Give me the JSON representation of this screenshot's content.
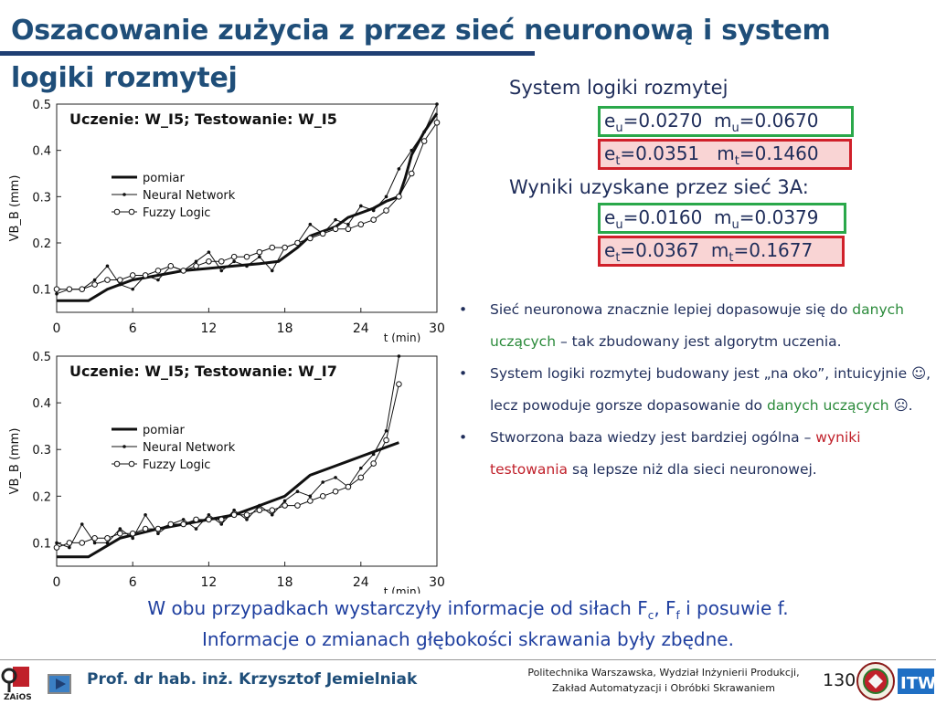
{
  "slide": {
    "title": "Oszacowanie zużycia z przez sieć neuronową i system logiki rozmytej"
  },
  "fuzzy_system": {
    "heading": "System logiki rozmytej",
    "train": {
      "e_label": "e",
      "e_sub": "u",
      "e_val": "=0.0270",
      "m_label": "m",
      "m_sub": "u",
      "m_val": "=0.0670"
    },
    "test": {
      "e_label": "e",
      "e_sub": "t",
      "e_val": "=0.0351",
      "m_label": "m",
      "m_sub": "t",
      "m_val": "=0.1460"
    }
  },
  "nn_results": {
    "heading": "Wyniki uzyskane przez sieć 3A:",
    "train": {
      "e_label": "e",
      "e_sub": "u",
      "e_val": "=0.0160",
      "m_label": "m",
      "m_sub": "u",
      "m_val": "=0.0379"
    },
    "test": {
      "e_label": "e",
      "e_sub": "t",
      "e_val": "=0.0367",
      "m_label": "m",
      "m_sub": "t",
      "m_val": "=0.1677"
    }
  },
  "bullets": [
    {
      "parts": [
        {
          "t": "Sieć neuronowa znacznie lepiej dopasowuje się do ",
          "c": ""
        },
        {
          "t": "danych uczących",
          "c": "green"
        },
        {
          "t": " – tak zbudowany jest algorytm uczenia.",
          "c": ""
        }
      ]
    },
    {
      "parts": [
        {
          "t": "System logiki rozmytej budowany jest „na oko”, intuicyjnie ☺, lecz powoduje gorsze dopasowanie do ",
          "c": ""
        },
        {
          "t": "danych uczących",
          "c": "green"
        },
        {
          "t": " ☹.",
          "c": ""
        }
      ]
    },
    {
      "parts": [
        {
          "t": "Stworzona baza wiedzy jest bardziej ogólna – ",
          "c": ""
        },
        {
          "t": "wyniki testowania",
          "c": "red"
        },
        {
          "t": " są lepsze niż dla sieci neuronowej.",
          "c": ""
        }
      ]
    }
  ],
  "summary": {
    "line1_a": "W obu przypadkach wystarczyły informacje od siłach F",
    "line1_sub1": "c",
    "line1_b": ", F",
    "line1_sub2": "f",
    "line1_c": "  i posuwie f.",
    "line2": "Informacje o zmianach głębokości skrawania były zbędne."
  },
  "footer": {
    "author": "Prof. dr hab. inż. Krzysztof Jemielniak",
    "institution_line1": "Politechnika Warszawska, Wydział Inżynierii Produkcji,",
    "institution_line2": "Zakład Automatyzacji i Obróbki Skrawaniem",
    "page_number": "130",
    "logo_left_text": "ZAiOS",
    "logo_right_text": "ITW"
  },
  "colors": {
    "title": "#1f4e79",
    "green_box": "#2aa84a",
    "red_box": "#d0202a",
    "red_fill": "#f9d4d4"
  },
  "chart_data": [
    {
      "type": "line",
      "title": "Uczenie: W_I5; Testowanie: W_I5",
      "xlabel": "t (min)",
      "ylabel": "VB_B (mm)",
      "xlim": [
        0,
        30
      ],
      "ylim": [
        0.05,
        0.5
      ],
      "xticks": [
        "0",
        "6",
        "12",
        "18",
        "24",
        "30"
      ],
      "yticks": [
        "0.1",
        "0.2",
        "0.3",
        "0.4",
        "0.5"
      ],
      "legend": [
        "pomiar",
        "Neural Network",
        "Fuzzy Logic"
      ],
      "series": [
        {
          "name": "pomiar",
          "x": [
            0,
            2.5,
            4,
            6,
            8,
            10,
            12,
            14,
            16,
            17.5,
            19,
            20,
            22,
            23,
            24,
            25,
            26,
            27,
            27.5,
            28,
            29,
            30
          ],
          "y": [
            0.075,
            0.075,
            0.1,
            0.12,
            0.13,
            0.14,
            0.145,
            0.15,
            0.155,
            0.16,
            0.19,
            0.215,
            0.235,
            0.255,
            0.265,
            0.275,
            0.29,
            0.3,
            0.34,
            0.39,
            0.44,
            0.48
          ]
        },
        {
          "name": "Neural Network",
          "x": [
            0,
            1,
            2,
            3,
            4,
            5,
            6,
            7,
            8,
            9,
            10,
            11,
            12,
            13,
            14,
            15,
            16,
            17,
            18,
            19,
            20,
            21,
            22,
            23,
            24,
            25,
            26,
            27,
            28,
            29,
            30
          ],
          "y": [
            0.09,
            0.1,
            0.1,
            0.12,
            0.15,
            0.11,
            0.1,
            0.13,
            0.12,
            0.15,
            0.14,
            0.16,
            0.18,
            0.14,
            0.16,
            0.15,
            0.17,
            0.14,
            0.19,
            0.2,
            0.24,
            0.22,
            0.25,
            0.24,
            0.28,
            0.27,
            0.3,
            0.36,
            0.4,
            0.44,
            0.5
          ]
        },
        {
          "name": "Fuzzy Logic",
          "x": [
            0,
            1,
            2,
            3,
            4,
            5,
            6,
            7,
            8,
            9,
            10,
            11,
            12,
            13,
            14,
            15,
            16,
            17,
            18,
            19,
            20,
            21,
            22,
            23,
            24,
            25,
            26,
            27,
            28,
            29,
            30
          ],
          "y": [
            0.1,
            0.1,
            0.1,
            0.11,
            0.12,
            0.12,
            0.13,
            0.13,
            0.14,
            0.15,
            0.14,
            0.15,
            0.16,
            0.16,
            0.17,
            0.17,
            0.18,
            0.19,
            0.19,
            0.2,
            0.21,
            0.22,
            0.23,
            0.23,
            0.24,
            0.25,
            0.27,
            0.3,
            0.35,
            0.42,
            0.46
          ]
        }
      ]
    },
    {
      "type": "line",
      "title": "Uczenie: W_I5; Testowanie: W_I7",
      "xlabel": "t (min)",
      "ylabel": "VB_B (mm)",
      "xlim": [
        0,
        30
      ],
      "ylim": [
        0.05,
        0.5
      ],
      "xticks": [
        "0",
        "6",
        "12",
        "18",
        "24",
        "30"
      ],
      "yticks": [
        "0.1",
        "0.2",
        "0.3",
        "0.4",
        "0.5"
      ],
      "legend": [
        "pomiar",
        "Neural Network",
        "Fuzzy Logic"
      ],
      "series": [
        {
          "name": "pomiar",
          "x": [
            0,
            2.5,
            5,
            8,
            10,
            12,
            14,
            16,
            18,
            20,
            22,
            24,
            26,
            27
          ],
          "y": [
            0.07,
            0.07,
            0.11,
            0.13,
            0.14,
            0.15,
            0.16,
            0.18,
            0.2,
            0.245,
            0.265,
            0.285,
            0.305,
            0.315
          ]
        },
        {
          "name": "Neural Network",
          "x": [
            0,
            1,
            2,
            3,
            4,
            5,
            6,
            7,
            8,
            9,
            10,
            11,
            12,
            13,
            14,
            15,
            16,
            17,
            18,
            19,
            20,
            21,
            22,
            23,
            24,
            25,
            26,
            27
          ],
          "y": [
            0.1,
            0.09,
            0.14,
            0.1,
            0.1,
            0.13,
            0.11,
            0.16,
            0.12,
            0.14,
            0.15,
            0.13,
            0.16,
            0.14,
            0.17,
            0.15,
            0.18,
            0.16,
            0.19,
            0.21,
            0.2,
            0.23,
            0.24,
            0.22,
            0.26,
            0.29,
            0.34,
            0.5
          ]
        },
        {
          "name": "Fuzzy Logic",
          "x": [
            0,
            1,
            2,
            3,
            4,
            5,
            6,
            7,
            8,
            9,
            10,
            11,
            12,
            13,
            14,
            15,
            16,
            17,
            18,
            19,
            20,
            21,
            22,
            23,
            24,
            25,
            26,
            27
          ],
          "y": [
            0.09,
            0.1,
            0.1,
            0.11,
            0.11,
            0.12,
            0.12,
            0.13,
            0.13,
            0.14,
            0.14,
            0.15,
            0.15,
            0.15,
            0.16,
            0.16,
            0.17,
            0.17,
            0.18,
            0.18,
            0.19,
            0.2,
            0.21,
            0.22,
            0.24,
            0.27,
            0.32,
            0.44
          ]
        }
      ]
    }
  ]
}
